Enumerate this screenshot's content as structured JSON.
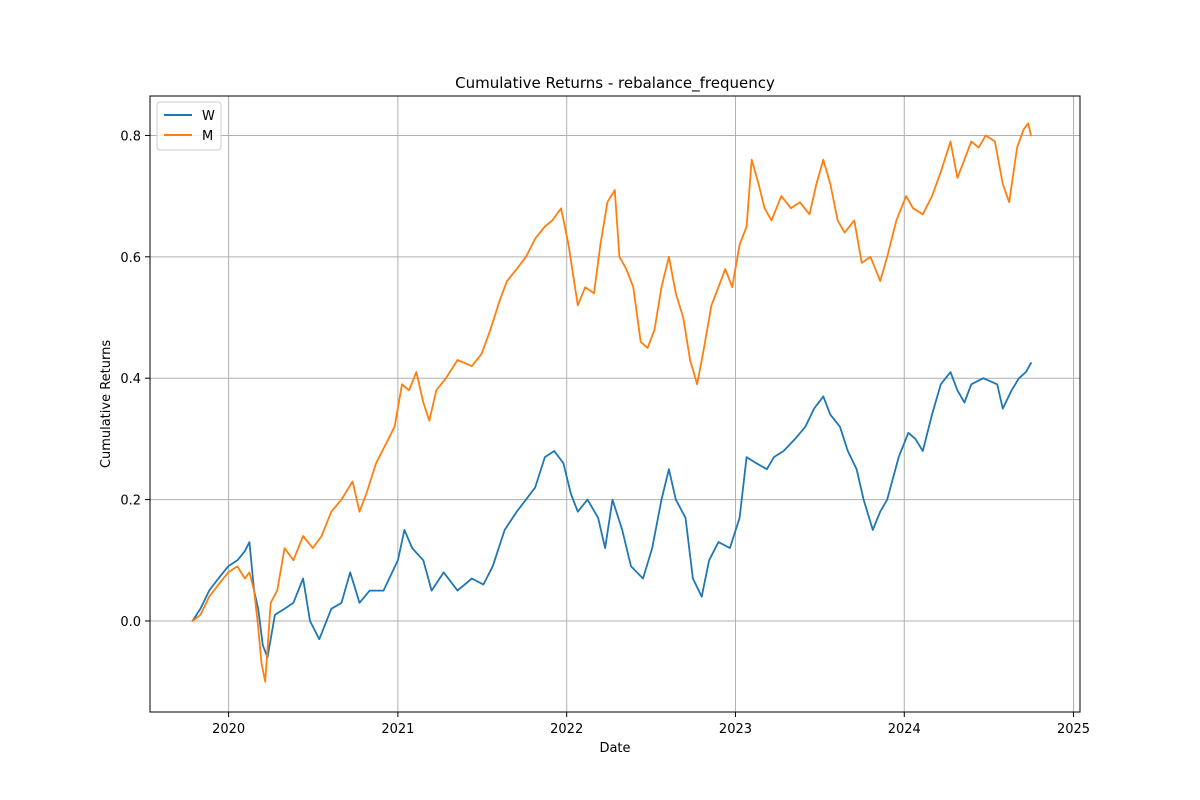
{
  "chart_data": {
    "type": "line",
    "title": "Cumulative Returns - rebalance_frequency",
    "xlabel": "Date",
    "ylabel": "Cumulative Returns",
    "xlim": [
      "2019-07-15",
      "2025-01-15"
    ],
    "ylim": [
      -0.15,
      0.865
    ],
    "grid": true,
    "legend_position": "upper left",
    "x_ticks": [
      {
        "date": "2020-01-01",
        "label": "2020"
      },
      {
        "date": "2021-01-01",
        "label": "2021"
      },
      {
        "date": "2022-01-01",
        "label": "2022"
      },
      {
        "date": "2023-01-01",
        "label": "2023"
      },
      {
        "date": "2024-01-01",
        "label": "2024"
      },
      {
        "date": "2025-01-01",
        "label": "2025"
      }
    ],
    "y_ticks": [
      {
        "value": 0.0,
        "label": "0.0"
      },
      {
        "value": 0.2,
        "label": "0.2"
      },
      {
        "value": 0.4,
        "label": "0.4"
      },
      {
        "value": 0.6,
        "label": "0.6"
      },
      {
        "value": 0.8,
        "label": "0.8"
      }
    ],
    "series": [
      {
        "name": "W",
        "color": "#1f77b4",
        "points": [
          [
            "2019-10-15",
            0.0
          ],
          [
            "2019-11-01",
            0.02
          ],
          [
            "2019-11-20",
            0.05
          ],
          [
            "2019-12-10",
            0.07
          ],
          [
            "2019-12-31",
            0.09
          ],
          [
            "2020-01-20",
            0.1
          ],
          [
            "2020-02-05",
            0.115
          ],
          [
            "2020-02-15",
            0.13
          ],
          [
            "2020-02-25",
            0.05
          ],
          [
            "2020-03-05",
            0.02
          ],
          [
            "2020-03-15",
            -0.04
          ],
          [
            "2020-03-25",
            -0.06
          ],
          [
            "2020-04-10",
            0.01
          ],
          [
            "2020-05-01",
            0.02
          ],
          [
            "2020-05-20",
            0.03
          ],
          [
            "2020-06-10",
            0.07
          ],
          [
            "2020-06-25",
            0.0
          ],
          [
            "2020-07-15",
            -0.03
          ],
          [
            "2020-08-10",
            0.02
          ],
          [
            "2020-09-01",
            0.03
          ],
          [
            "2020-09-20",
            0.08
          ],
          [
            "2020-10-10",
            0.03
          ],
          [
            "2020-11-01",
            0.05
          ],
          [
            "2020-12-01",
            0.05
          ],
          [
            "2021-01-01",
            0.1
          ],
          [
            "2021-01-15",
            0.15
          ],
          [
            "2021-02-01",
            0.12
          ],
          [
            "2021-02-25",
            0.1
          ],
          [
            "2021-03-15",
            0.05
          ],
          [
            "2021-04-10",
            0.08
          ],
          [
            "2021-05-10",
            0.05
          ],
          [
            "2021-06-10",
            0.07
          ],
          [
            "2021-07-05",
            0.06
          ],
          [
            "2021-07-25",
            0.09
          ],
          [
            "2021-08-20",
            0.15
          ],
          [
            "2021-09-15",
            0.18
          ],
          [
            "2021-10-05",
            0.2
          ],
          [
            "2021-10-25",
            0.22
          ],
          [
            "2021-11-15",
            0.27
          ],
          [
            "2021-12-05",
            0.28
          ],
          [
            "2021-12-25",
            0.26
          ],
          [
            "2022-01-10",
            0.21
          ],
          [
            "2022-01-25",
            0.18
          ],
          [
            "2022-02-15",
            0.2
          ],
          [
            "2022-03-10",
            0.17
          ],
          [
            "2022-03-25",
            0.12
          ],
          [
            "2022-04-10",
            0.2
          ],
          [
            "2022-05-01",
            0.15
          ],
          [
            "2022-05-20",
            0.09
          ],
          [
            "2022-06-15",
            0.07
          ],
          [
            "2022-07-05",
            0.12
          ],
          [
            "2022-07-25",
            0.2
          ],
          [
            "2022-08-10",
            0.25
          ],
          [
            "2022-08-25",
            0.2
          ],
          [
            "2022-09-15",
            0.17
          ],
          [
            "2022-10-01",
            0.07
          ],
          [
            "2022-10-20",
            0.04
          ],
          [
            "2022-11-05",
            0.1
          ],
          [
            "2022-11-25",
            0.13
          ],
          [
            "2022-12-20",
            0.12
          ],
          [
            "2023-01-10",
            0.17
          ],
          [
            "2023-01-25",
            0.27
          ],
          [
            "2023-02-15",
            0.26
          ],
          [
            "2023-03-10",
            0.25
          ],
          [
            "2023-03-25",
            0.27
          ],
          [
            "2023-04-15",
            0.28
          ],
          [
            "2023-05-10",
            0.3
          ],
          [
            "2023-06-01",
            0.32
          ],
          [
            "2023-06-20",
            0.35
          ],
          [
            "2023-07-10",
            0.37
          ],
          [
            "2023-07-25",
            0.34
          ],
          [
            "2023-08-15",
            0.32
          ],
          [
            "2023-09-01",
            0.28
          ],
          [
            "2023-09-20",
            0.25
          ],
          [
            "2023-10-05",
            0.2
          ],
          [
            "2023-10-25",
            0.15
          ],
          [
            "2023-11-10",
            0.18
          ],
          [
            "2023-11-25",
            0.2
          ],
          [
            "2023-12-20",
            0.27
          ],
          [
            "2024-01-10",
            0.31
          ],
          [
            "2024-01-25",
            0.3
          ],
          [
            "2024-02-10",
            0.28
          ],
          [
            "2024-03-01",
            0.34
          ],
          [
            "2024-03-20",
            0.39
          ],
          [
            "2024-04-10",
            0.41
          ],
          [
            "2024-04-25",
            0.38
          ],
          [
            "2024-05-10",
            0.36
          ],
          [
            "2024-05-25",
            0.39
          ],
          [
            "2024-06-20",
            0.4
          ],
          [
            "2024-07-20",
            0.39
          ],
          [
            "2024-08-01",
            0.35
          ],
          [
            "2024-08-20",
            0.38
          ],
          [
            "2024-09-05",
            0.4
          ],
          [
            "2024-09-20",
            0.41
          ],
          [
            "2024-10-01",
            0.425
          ]
        ]
      },
      {
        "name": "M",
        "color": "#ff7f0e",
        "points": [
          [
            "2019-10-15",
            0.0
          ],
          [
            "2019-11-01",
            0.01
          ],
          [
            "2019-11-20",
            0.04
          ],
          [
            "2019-12-10",
            0.06
          ],
          [
            "2019-12-31",
            0.08
          ],
          [
            "2020-01-20",
            0.09
          ],
          [
            "2020-02-05",
            0.07
          ],
          [
            "2020-02-15",
            0.08
          ],
          [
            "2020-02-25",
            0.05
          ],
          [
            "2020-03-05",
            -0.01
          ],
          [
            "2020-03-12",
            -0.07
          ],
          [
            "2020-03-20",
            -0.1
          ],
          [
            "2020-04-01",
            0.03
          ],
          [
            "2020-04-15",
            0.05
          ],
          [
            "2020-05-01",
            0.12
          ],
          [
            "2020-05-20",
            0.1
          ],
          [
            "2020-06-10",
            0.14
          ],
          [
            "2020-07-01",
            0.12
          ],
          [
            "2020-07-20",
            0.14
          ],
          [
            "2020-08-10",
            0.18
          ],
          [
            "2020-09-01",
            0.2
          ],
          [
            "2020-09-25",
            0.23
          ],
          [
            "2020-10-10",
            0.18
          ],
          [
            "2020-10-25",
            0.21
          ],
          [
            "2020-11-15",
            0.26
          ],
          [
            "2020-12-05",
            0.29
          ],
          [
            "2020-12-25",
            0.32
          ],
          [
            "2021-01-10",
            0.39
          ],
          [
            "2021-01-25",
            0.38
          ],
          [
            "2021-02-10",
            0.41
          ],
          [
            "2021-02-25",
            0.36
          ],
          [
            "2021-03-10",
            0.33
          ],
          [
            "2021-03-25",
            0.38
          ],
          [
            "2021-04-15",
            0.4
          ],
          [
            "2021-05-10",
            0.43
          ],
          [
            "2021-06-10",
            0.42
          ],
          [
            "2021-07-01",
            0.44
          ],
          [
            "2021-07-20",
            0.48
          ],
          [
            "2021-08-10",
            0.53
          ],
          [
            "2021-08-25",
            0.56
          ],
          [
            "2021-09-15",
            0.58
          ],
          [
            "2021-10-05",
            0.6
          ],
          [
            "2021-10-25",
            0.63
          ],
          [
            "2021-11-15",
            0.65
          ],
          [
            "2021-12-01",
            0.66
          ],
          [
            "2021-12-20",
            0.68
          ],
          [
            "2022-01-05",
            0.62
          ],
          [
            "2022-01-25",
            0.52
          ],
          [
            "2022-02-10",
            0.55
          ],
          [
            "2022-03-01",
            0.54
          ],
          [
            "2022-03-15",
            0.62
          ],
          [
            "2022-03-30",
            0.69
          ],
          [
            "2022-04-15",
            0.71
          ],
          [
            "2022-04-25",
            0.6
          ],
          [
            "2022-05-10",
            0.58
          ],
          [
            "2022-05-25",
            0.55
          ],
          [
            "2022-06-10",
            0.46
          ],
          [
            "2022-06-25",
            0.45
          ],
          [
            "2022-07-10",
            0.48
          ],
          [
            "2022-07-25",
            0.55
          ],
          [
            "2022-08-10",
            0.6
          ],
          [
            "2022-08-25",
            0.54
          ],
          [
            "2022-09-10",
            0.5
          ],
          [
            "2022-09-25",
            0.43
          ],
          [
            "2022-10-10",
            0.39
          ],
          [
            "2022-10-25",
            0.45
          ],
          [
            "2022-11-10",
            0.52
          ],
          [
            "2022-11-25",
            0.55
          ],
          [
            "2022-12-10",
            0.58
          ],
          [
            "2022-12-25",
            0.55
          ],
          [
            "2023-01-10",
            0.62
          ],
          [
            "2023-01-25",
            0.65
          ],
          [
            "2023-02-05",
            0.76
          ],
          [
            "2023-02-20",
            0.72
          ],
          [
            "2023-03-05",
            0.68
          ],
          [
            "2023-03-20",
            0.66
          ],
          [
            "2023-04-10",
            0.7
          ],
          [
            "2023-05-01",
            0.68
          ],
          [
            "2023-05-20",
            0.69
          ],
          [
            "2023-06-10",
            0.67
          ],
          [
            "2023-06-25",
            0.72
          ],
          [
            "2023-07-10",
            0.76
          ],
          [
            "2023-07-25",
            0.72
          ],
          [
            "2023-08-10",
            0.66
          ],
          [
            "2023-08-25",
            0.64
          ],
          [
            "2023-09-15",
            0.66
          ],
          [
            "2023-10-01",
            0.59
          ],
          [
            "2023-10-20",
            0.6
          ],
          [
            "2023-11-10",
            0.56
          ],
          [
            "2023-11-25",
            0.6
          ],
          [
            "2023-12-15",
            0.66
          ],
          [
            "2024-01-05",
            0.7
          ],
          [
            "2024-01-20",
            0.68
          ],
          [
            "2024-02-10",
            0.67
          ],
          [
            "2024-03-01",
            0.7
          ],
          [
            "2024-03-20",
            0.74
          ],
          [
            "2024-04-10",
            0.79
          ],
          [
            "2024-04-25",
            0.73
          ],
          [
            "2024-05-10",
            0.76
          ],
          [
            "2024-05-25",
            0.79
          ],
          [
            "2024-06-10",
            0.78
          ],
          [
            "2024-06-25",
            0.8
          ],
          [
            "2024-07-15",
            0.79
          ],
          [
            "2024-08-01",
            0.72
          ],
          [
            "2024-08-15",
            0.69
          ],
          [
            "2024-09-01",
            0.78
          ],
          [
            "2024-09-15",
            0.81
          ],
          [
            "2024-09-25",
            0.82
          ],
          [
            "2024-10-01",
            0.8
          ]
        ]
      }
    ]
  }
}
